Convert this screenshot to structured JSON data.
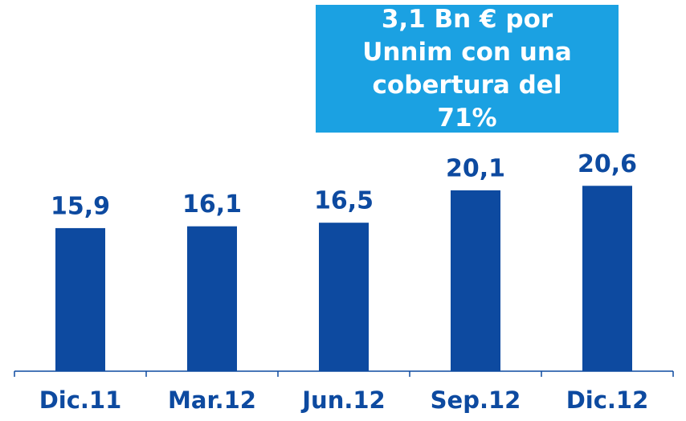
{
  "chart_data": {
    "type": "bar",
    "categories": [
      "Dic.11",
      "Mar.12",
      "Jun.12",
      "Sep.12",
      "Dic.12"
    ],
    "values": [
      15.9,
      16.1,
      16.5,
      20.1,
      20.6
    ],
    "value_labels": [
      "15,9",
      "16,1",
      "16,5",
      "20,1",
      "20,6"
    ],
    "color": "#0d4aa0",
    "annotation": "3,1 Bn € por Unnim con una cobertura del 71%"
  }
}
